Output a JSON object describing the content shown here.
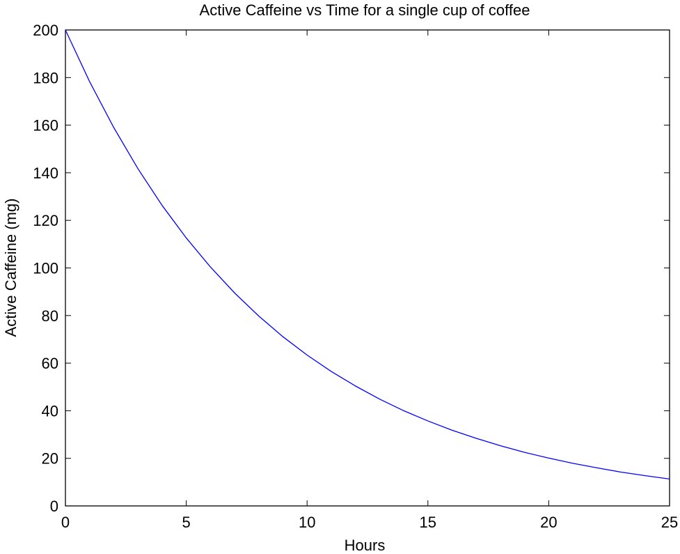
{
  "chart_data": {
    "type": "line",
    "title": "Active Caffeine vs Time for a single cup of coffee",
    "xlabel": "Hours",
    "ylabel": "Active Caffeine (mg)",
    "xlim": [
      0,
      25
    ],
    "ylim": [
      0,
      200
    ],
    "xticks": [
      0,
      5,
      10,
      15,
      20,
      25
    ],
    "yticks": [
      0,
      20,
      40,
      60,
      80,
      100,
      120,
      140,
      160,
      180,
      200
    ],
    "grid": false,
    "series": [
      {
        "color": "#0000ff",
        "x": [
          0,
          1,
          2,
          3,
          4,
          5,
          6,
          7,
          8,
          9,
          10,
          11,
          12,
          13,
          14,
          15,
          16,
          17,
          18,
          19,
          20,
          21,
          22,
          23,
          24,
          25
        ],
        "y": [
          200,
          178.3,
          159.0,
          141.7,
          126.3,
          112.6,
          100.4,
          89.5,
          79.8,
          71.1,
          63.4,
          56.5,
          50.4,
          44.9,
          40.0,
          35.7,
          31.8,
          28.4,
          25.3,
          22.5,
          20.1,
          17.9,
          16.0,
          14.2,
          12.7,
          11.3
        ]
      }
    ]
  }
}
